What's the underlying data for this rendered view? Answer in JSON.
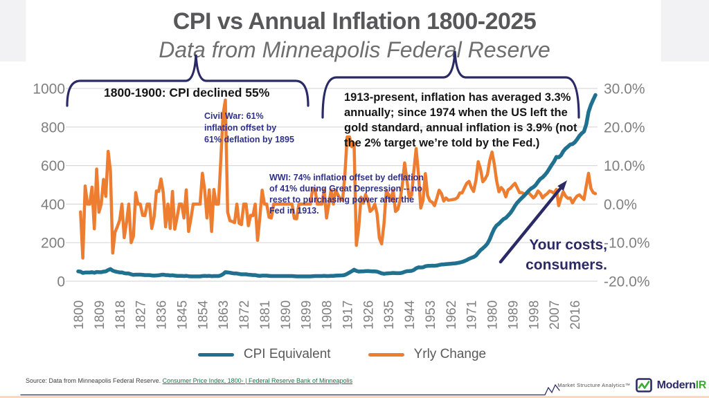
{
  "page": {
    "title": "CPI vs Annual Inflation 1800-2025",
    "subtitle": "Data from Minneapolis Federal Reserve"
  },
  "annotations": {
    "cpi_decline": "1800-1900: CPI declined 55%",
    "civil_war": "Civil War: 61%\ninflation offset by\n61% deflation by 1895",
    "fed_era": "1913-present, inflation has averaged 3.3%\nannually; since 1974 when the US left the\ngold standard, annual inflation is 3.9% (not\nthe 2% target we’re told by the Fed.)",
    "wwi": "WWI: 74% inflation offset by deflation\nof 41% during Great Depression -- no\nreset to purchasing power after the\nFed in 1913.",
    "your_costs": "Your costs,\nconsumers."
  },
  "footer": {
    "source_prefix": "Source: Data from Minneapolis Federal Reserve. ",
    "source_link": "Consumer Price Index, 1800- | Federal Reserve Bank of Minneapolis",
    "brand_tagline": "Market Structure Analytics™",
    "brand_name_primary": "Modern",
    "brand_name_accent": "IR"
  },
  "colors": {
    "cpi_line": "#20708F",
    "yrly_line": "#ED7D31",
    "annotation_navy": "#2B2A66",
    "annotation_indigo": "#2F3086",
    "brand_green": "#3AAA35",
    "link_green": "#0E7A3E",
    "axis_text": "#7F7F7F",
    "title_gray": "#58585A",
    "gridline": "#D9D9D9"
  },
  "chart_data": {
    "type": "line",
    "title": "CPI vs Annual Inflation 1800-2025",
    "subtitle": "Data from Minneapolis Federal Reserve",
    "start_year": 1800,
    "end_year": 2025,
    "grid": true,
    "legend_position": "bottom",
    "x_tick_years": [
      1800,
      1809,
      1818,
      1827,
      1836,
      1845,
      1854,
      1863,
      1872,
      1881,
      1890,
      1899,
      1908,
      1917,
      1926,
      1935,
      1944,
      1953,
      1962,
      1971,
      1980,
      1989,
      1998,
      2007,
      2016
    ],
    "left_axis": {
      "min": 0,
      "max": 1000,
      "ticks": [
        "1000",
        "800",
        "600",
        "400",
        "200",
        "0"
      ]
    },
    "right_axis": {
      "min": -20,
      "max": 30,
      "ticks": [
        "30.0%",
        "20.0%",
        "10.0%",
        "0.0%",
        "-10.0%",
        "-20.0%"
      ]
    },
    "series": [
      {
        "name": "CPI Equivalent",
        "color": "#20708F",
        "axis": "left",
        "width": 5.5,
        "start_year": 1800,
        "values": [
          51,
          50,
          43,
          45,
          45,
          45,
          47,
          44,
          48,
          47,
          47,
          50,
          51,
          58,
          63,
          55,
          51,
          48,
          46,
          46,
          42,
          40,
          40,
          36,
          33,
          34,
          34,
          34,
          33,
          32,
          32,
          32,
          30,
          29,
          30,
          31,
          33,
          34,
          32,
          32,
          30,
          31,
          29,
          28,
          28,
          28,
          27,
          28,
          26,
          25,
          25,
          25,
          25,
          25,
          27,
          28,
          27,
          28,
          26,
          27,
          27,
          27,
          30,
          37,
          47,
          46,
          44,
          42,
          40,
          40,
          38,
          36,
          36,
          36,
          34,
          33,
          32,
          32,
          29,
          28,
          29,
          29,
          29,
          28,
          27,
          27,
          27,
          27,
          27,
          27,
          27,
          27,
          27,
          27,
          26,
          25,
          25,
          25,
          25,
          25,
          25,
          25,
          26,
          27,
          27,
          27,
          27,
          28,
          27,
          27,
          28,
          28,
          29,
          29.7,
          30.1,
          30.4,
          32.7,
          38.4,
          45.1,
          51.8,
          60,
          53.6,
          50.2,
          51.1,
          51.2,
          52.5,
          53,
          52,
          51.3,
          51.3,
          50,
          45.6,
          40.9,
          38.8,
          40.1,
          41.1,
          41.5,
          43,
          42.2,
          41.6,
          42,
          44.1,
          48.8,
          51.8,
          52.7,
          53.9,
          58.5,
          66.9,
          72.1,
          71.4,
          72.1,
          77.8,
          79.5,
          80.1,
          80.5,
          80.2,
          81.4,
          84.3,
          86.6,
          87.3,
          88.7,
          89.6,
          90.6,
          91.7,
          92.9,
          94.5,
          97.2,
          100,
          104.2,
          109.8,
          116.3,
          121.3,
          125.3,
          133.1,
          147.7,
          161.2,
          170.5,
          181.5,
          195.4,
          217.4,
          246.8,
          272.4,
          289.1,
          298.4,
          311.1,
          322.2,
          328.4,
          340.4,
          354.3,
          371.3,
          391.4,
          408,
          420.3,
          432.7,
          444,
          456.5,
          469.9,
          480.8,
          488.3,
          499,
          515.8,
          530.4,
          538.8,
          551.1,
          565.8,
          585,
          603.9,
          621.1,
          644.9,
          642.6,
          653.2,
          673.8,
          687.8,
          697.8,
          709.1,
          711.3,
          720.3,
          735.6,
          753.6,
          766.9,
          776.3,
          812.8,
          877.8,
          914,
          941,
          966
        ]
      },
      {
        "name": "Yrly Change",
        "color": "#ED7D31",
        "axis": "right",
        "unit": "%",
        "width": 4.5,
        "start_year": 1801,
        "values": [
          -2,
          -14,
          4.7,
          0,
          0,
          4.4,
          -6.4,
          9.1,
          -2.1,
          0,
          6.4,
          2,
          13.7,
          8.6,
          -12.7,
          -7.3,
          -5.9,
          -4.2,
          0,
          -8.7,
          -4.8,
          0,
          -10,
          -8.3,
          3,
          0,
          0,
          -2.9,
          -3,
          0,
          0,
          -6.3,
          -3.3,
          3.4,
          3.3,
          6.5,
          3,
          -5.9,
          0,
          -6.3,
          3.3,
          -6.5,
          -3.4,
          0,
          0,
          -3.6,
          3.7,
          -7.1,
          -3.8,
          0,
          0,
          0,
          0,
          8,
          3.7,
          -3.6,
          3.7,
          -7.1,
          3.8,
          0,
          0,
          11.1,
          23.3,
          27,
          -2.1,
          -4.3,
          -4.5,
          -4.8,
          0,
          -5,
          -5.3,
          0,
          0,
          -5.6,
          -2.9,
          -3,
          0,
          -9.4,
          -3.4,
          3.6,
          0,
          0,
          -3.4,
          -3.6,
          0,
          0,
          0,
          0,
          0,
          0,
          0,
          0,
          0,
          -3.7,
          -3.8,
          0,
          0,
          0,
          0,
          0,
          0,
          4,
          3.8,
          0,
          0,
          0,
          3.7,
          -3.6,
          0,
          3.7,
          0,
          3.6,
          2.4,
          1.3,
          1,
          7.6,
          17.4,
          17.4,
          14.9,
          15.8,
          -10.7,
          -6.3,
          1.8,
          0.2,
          2.5,
          1,
          -1.9,
          -1.3,
          0,
          -2.5,
          -8.8,
          -10.3,
          -5.1,
          3.4,
          2.5,
          1,
          3.6,
          -1.9,
          -1.4,
          1,
          5,
          10.7,
          6.1,
          1.7,
          2.3,
          8.5,
          14.4,
          7.8,
          -1,
          1,
          7.9,
          2.2,
          0.8,
          0.5,
          -0.4,
          1.5,
          3.6,
          2.7,
          0.8,
          1.6,
          1,
          1.1,
          1.2,
          1.3,
          1.7,
          2.9,
          2.9,
          4.2,
          5.4,
          5.9,
          4.3,
          3.3,
          6.2,
          11,
          9.1,
          5.8,
          6.5,
          7.7,
          11.3,
          13.5,
          10.4,
          6.1,
          3.2,
          4.3,
          3.6,
          1.9,
          3.7,
          4.1,
          4.8,
          5.4,
          4.2,
          3,
          3,
          2.6,
          2.8,
          2.9,
          2.3,
          1.6,
          2.2,
          3.4,
          2.8,
          1.6,
          2.3,
          2.7,
          3.4,
          3.2,
          2.8,
          3.8,
          -0.4,
          1.6,
          3.2,
          2.1,
          1.5,
          1.6,
          0.3,
          1.3,
          2.1,
          2.4,
          1.8,
          1.2,
          4.7,
          8,
          4.1,
          3,
          2.7
        ]
      }
    ]
  }
}
